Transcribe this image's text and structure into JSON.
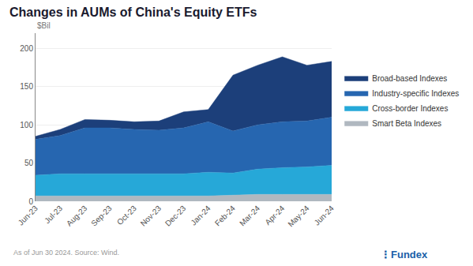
{
  "chart_data": {
    "type": "area",
    "stacked": true,
    "title": "Changes in AUMs of China's Equity ETFs",
    "ylabel": "$Bil",
    "categories": [
      "Jun-23",
      "Jul-23",
      "Aug-23",
      "Sep-23",
      "Oct-23",
      "Nov-23",
      "Dec-23",
      "Jan-24",
      "Feb-24",
      "Mar-24",
      "Apr-24",
      "May-24",
      "Jun-24"
    ],
    "series": [
      {
        "name": "Smart Beta Indexes",
        "color": "#b0b8c0",
        "values": [
          7,
          7,
          7,
          7,
          7,
          7,
          7,
          7,
          8,
          9,
          9,
          9,
          9
        ]
      },
      {
        "name": "Cross-border Indexes",
        "color": "#26a8d8",
        "values": [
          27,
          29,
          29,
          29,
          29,
          29,
          29,
          31,
          29,
          33,
          35,
          36,
          38
        ]
      },
      {
        "name": "Industry-specific Indexes",
        "color": "#2666b0",
        "values": [
          47,
          50,
          60,
          60,
          58,
          57,
          60,
          66,
          55,
          58,
          60,
          60,
          63
        ]
      },
      {
        "name": "Broad-based Indexes",
        "color": "#1c3f7a",
        "values": [
          4,
          8,
          11,
          10,
          10,
          12,
          21,
          16,
          73,
          78,
          85,
          73,
          73
        ]
      }
    ],
    "ylim": [
      0,
      220
    ],
    "yticks": [
      0,
      50,
      100,
      150,
      200
    ],
    "grid": true,
    "legend": "right",
    "annotations": [
      "As of Jun 30 2024. Source: Wind.",
      "⋮Fundex"
    ]
  }
}
